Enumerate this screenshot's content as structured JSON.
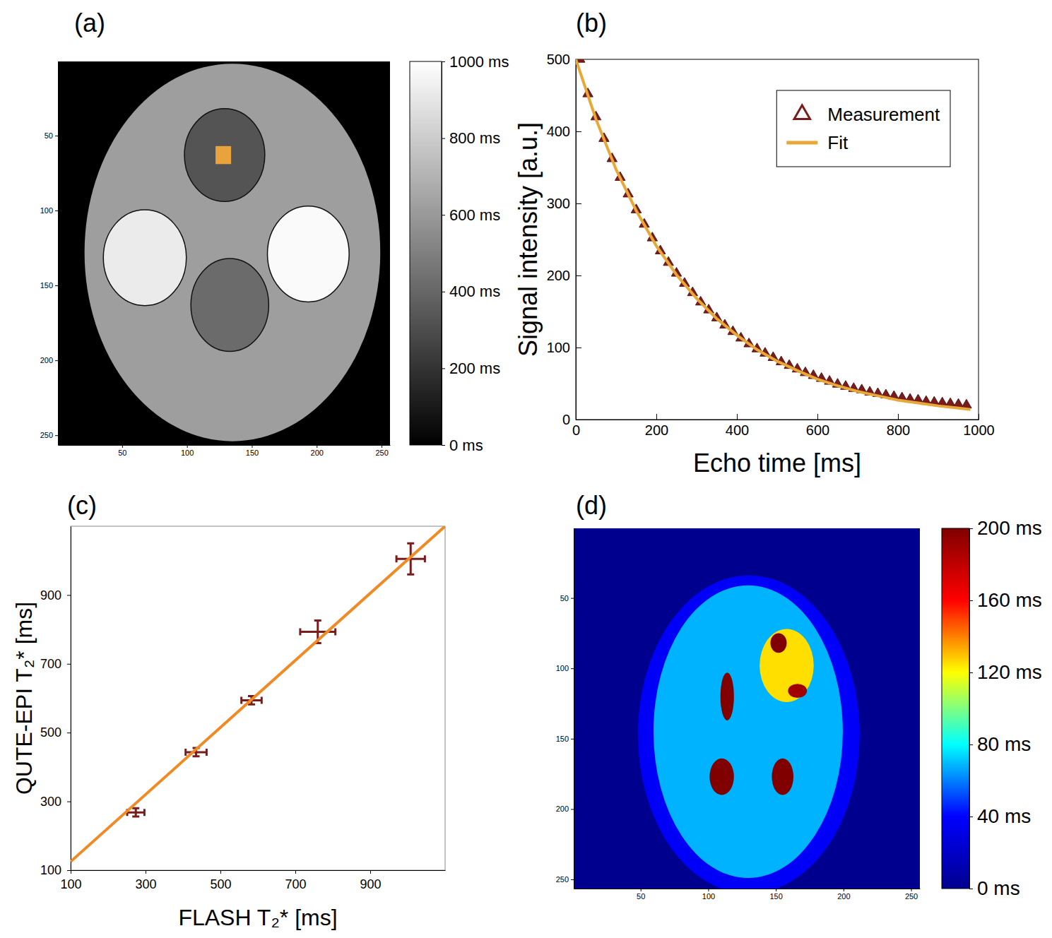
{
  "chart_data": [
    {
      "type": "image",
      "title": "(a)",
      "xlim": [
        0.5,
        256.5
      ],
      "ylim": [
        0.5,
        256.5
      ],
      "xticks": [
        50,
        100,
        150,
        200,
        250
      ],
      "yticks": [
        50,
        100,
        150,
        200,
        250
      ],
      "background": 0,
      "regions": [
        {
          "cx": 135,
          "cy": 128,
          "rx": 114,
          "ry": 126,
          "value": 620
        },
        {
          "cx": 129,
          "cy": 63,
          "rx": 31,
          "ry": 31,
          "value": 330
        },
        {
          "cx": 67.5,
          "cy": 131.5,
          "rx": 32,
          "ry": 32,
          "value": 920
        },
        {
          "cx": 193.5,
          "cy": 129,
          "rx": 31.5,
          "ry": 32,
          "value": 980
        },
        {
          "cx": 133,
          "cy": 163,
          "rx": 30,
          "ry": 31,
          "value": 420
        }
      ],
      "roi": {
        "x": 128,
        "y": 63,
        "size": 12,
        "color": "#e8a33d"
      },
      "colorbar": {
        "range": [
          0,
          1000
        ],
        "ticks": [
          {
            "value": 0,
            "label": "0 ms"
          },
          {
            "value": 200,
            "label": "200 ms"
          },
          {
            "value": 400,
            "label": "400 ms"
          },
          {
            "value": 600,
            "label": "600 ms"
          },
          {
            "value": 800,
            "label": "800 ms"
          },
          {
            "value": 1000,
            "label": "1000 ms"
          }
        ],
        "colors": [
          "#000000",
          "#ffffff"
        ]
      }
    },
    {
      "type": "line",
      "title": "(b)",
      "x_label": "Echo time [ms]",
      "y_label": "Signal intensity [a.u.]",
      "xlim": [
        0,
        1000
      ],
      "ylim": [
        0,
        500
      ],
      "xticks": [
        0,
        200,
        400,
        600,
        800,
        1000
      ],
      "yticks": [
        0,
        100,
        200,
        300,
        400,
        500
      ],
      "legend": "upper right",
      "series": [
        {
          "name": "Measurement",
          "type": "scatter",
          "marker": "triangle",
          "color": "#7a1c1c",
          "x": [
            10,
            30,
            50,
            70,
            90,
            110,
            130,
            150,
            170,
            190,
            210,
            230,
            250,
            270,
            290,
            310,
            330,
            350,
            370,
            390,
            410,
            430,
            450,
            470,
            490,
            510,
            530,
            550,
            570,
            590,
            610,
            630,
            650,
            670,
            690,
            710,
            730,
            750,
            770,
            790,
            810,
            830,
            850,
            870,
            890,
            910,
            930,
            950,
            970
          ],
          "values": [
            500,
            452,
            420,
            390,
            362,
            336,
            313,
            291,
            271,
            252,
            234,
            218,
            203,
            189,
            176,
            163,
            152,
            141,
            131,
            122,
            113,
            105,
            98,
            92,
            86,
            80,
            75,
            70,
            65,
            61,
            57,
            53,
            49,
            46,
            43,
            41,
            38,
            36,
            34,
            32,
            30,
            28,
            27,
            25,
            24,
            23,
            22,
            21,
            20
          ]
        },
        {
          "name": "Fit",
          "type": "line",
          "color": "#e8a838",
          "x": [
            0,
            50,
            100,
            150,
            200,
            250,
            300,
            350,
            400,
            450,
            500,
            550,
            600,
            650,
            700,
            750,
            800,
            850,
            900,
            950,
            980
          ],
          "values": [
            500,
            417,
            347,
            290,
            241,
            201,
            168,
            140,
            117,
            97,
            81,
            68,
            56,
            47,
            39,
            33,
            27,
            23,
            19,
            16,
            14
          ]
        }
      ]
    },
    {
      "type": "scatter",
      "title": "(c)",
      "x_label": "FLASH T₂* [ms]",
      "y_label": "QUTE-EPI T₂* [ms]",
      "xlim": [
        100,
        1100
      ],
      "ylim": [
        100,
        1100
      ],
      "xticks": [
        100,
        300,
        500,
        700,
        900
      ],
      "yticks": [
        100,
        300,
        500,
        700,
        900
      ],
      "series": [
        {
          "type": "scatter",
          "color": "#7a1c1c",
          "x": [
            274,
            435,
            583,
            760,
            1008
          ],
          "values": [
            268,
            443,
            594,
            793,
            1005
          ],
          "xerr": [
            23,
            28,
            27,
            47,
            38
          ],
          "yerr": [
            12,
            12,
            12,
            33,
            45
          ]
        },
        {
          "type": "line",
          "color": "#f08a24",
          "x": [
            100,
            1100
          ],
          "values": [
            125,
            1100
          ]
        }
      ]
    },
    {
      "type": "image",
      "title": "(d)",
      "xlim": [
        0.5,
        256.5
      ],
      "ylim": [
        0.5,
        256.5
      ],
      "xticks": [
        50,
        100,
        150,
        200,
        250
      ],
      "yticks": [
        50,
        100,
        150,
        200,
        250
      ],
      "background": 0,
      "regions": [
        {
          "cx": 130,
          "cy": 147,
          "rx": 82,
          "ry": 113,
          "value": 38
        },
        {
          "cx": 129.5,
          "cy": 145,
          "rx": 70,
          "ry": 104,
          "value": 68
        },
        {
          "cx": 158,
          "cy": 98,
          "rx": 20,
          "ry": 26,
          "value": 125
        },
        {
          "cx": 152,
          "cy": 82,
          "rx": 6,
          "ry": 7,
          "value": 200
        },
        {
          "cx": 166,
          "cy": 116,
          "rx": 7,
          "ry": 5,
          "value": 190
        },
        {
          "cx": 114,
          "cy": 120,
          "rx": 5,
          "ry": 17,
          "value": 200
        },
        {
          "cx": 110,
          "cy": 177,
          "rx": 9,
          "ry": 13,
          "value": 200
        },
        {
          "cx": 155,
          "cy": 177,
          "rx": 8,
          "ry": 13,
          "value": 200
        }
      ],
      "colorbar": {
        "range": [
          0,
          200
        ],
        "ticks": [
          {
            "value": 0,
            "label": "0 ms"
          },
          {
            "value": 40,
            "label": "40 ms"
          },
          {
            "value": 80,
            "label": "80 ms"
          },
          {
            "value": 120,
            "label": "120 ms"
          },
          {
            "value": 160,
            "label": "160 ms"
          },
          {
            "value": 200,
            "label": "200 ms"
          }
        ],
        "colors": [
          "#00008f",
          "#0000ff",
          "#00ffff",
          "#ffff00",
          "#ff0000",
          "#800000"
        ]
      }
    }
  ]
}
